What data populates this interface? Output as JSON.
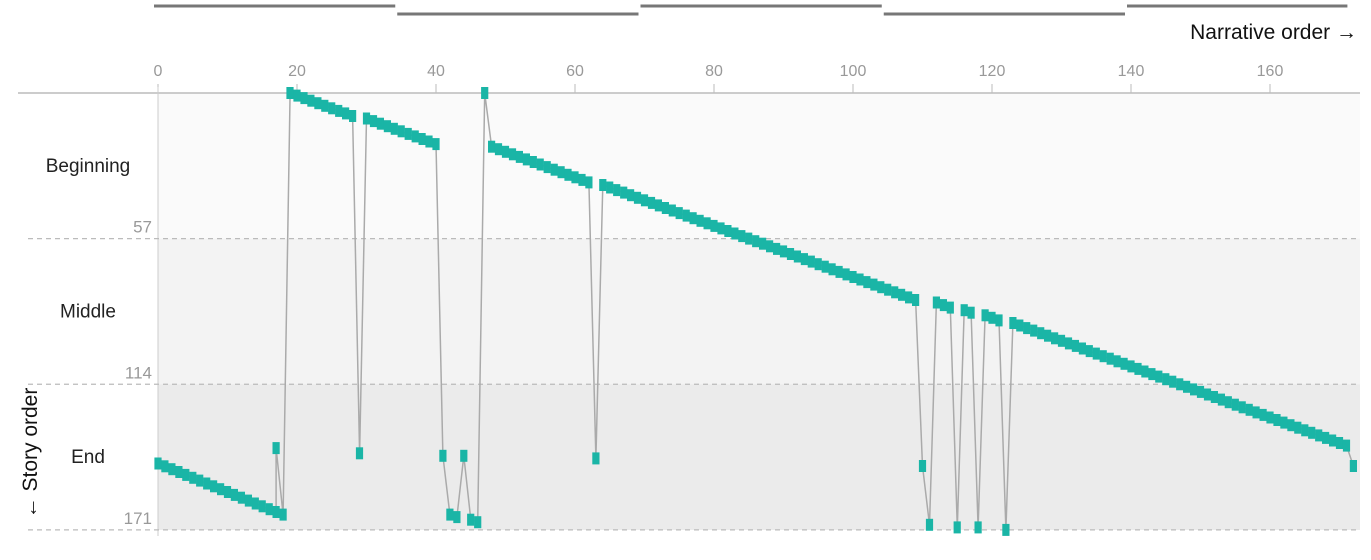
{
  "chart_data": {
    "type": "line",
    "x_axis": {
      "label": "Narrative order →",
      "range": [
        0,
        172
      ],
      "ticks": [
        0,
        20,
        40,
        60,
        80,
        100,
        120,
        140,
        160
      ]
    },
    "y_axis": {
      "label": "← Story order",
      "range": [
        0,
        171
      ],
      "inverted": true,
      "ticks": [
        57,
        114,
        171
      ]
    },
    "bands": [
      {
        "label": "Beginning",
        "start": 0,
        "end": 57
      },
      {
        "label": "Middle",
        "start": 57,
        "end": 114
      },
      {
        "label": "End",
        "start": 114,
        "end": 171
      }
    ],
    "top_segments": [
      [
        0,
        35
      ],
      [
        35,
        70
      ],
      [
        70,
        105
      ],
      [
        105,
        140
      ],
      [
        140,
        172
      ]
    ],
    "segments": [
      {
        "x_start": 0,
        "x_end": 17,
        "y_start": 145,
        "y_end": 164
      },
      {
        "x_start": 17,
        "x_end": 17,
        "y_start": 139,
        "y_end": 139
      },
      {
        "x_start": 18,
        "x_end": 18,
        "y_start": 165,
        "y_end": 165
      },
      {
        "x_start": 19,
        "x_end": 28,
        "y_start": 0,
        "y_end": 9
      },
      {
        "x_start": 29,
        "x_end": 29,
        "y_start": 141,
        "y_end": 141
      },
      {
        "x_start": 30,
        "x_end": 40,
        "y_start": 10,
        "y_end": 20
      },
      {
        "x_start": 41,
        "x_end": 41,
        "y_start": 142,
        "y_end": 142
      },
      {
        "x_start": 42,
        "x_end": 43,
        "y_start": 165,
        "y_end": 166
      },
      {
        "x_start": 44,
        "x_end": 44,
        "y_start": 142,
        "y_end": 142
      },
      {
        "x_start": 45,
        "x_end": 46,
        "y_start": 167,
        "y_end": 168
      },
      {
        "x_start": 47,
        "x_end": 47,
        "y_start": 0,
        "y_end": 0
      },
      {
        "x_start": 48,
        "x_end": 62,
        "y_start": 21,
        "y_end": 35
      },
      {
        "x_start": 63,
        "x_end": 63,
        "y_start": 143,
        "y_end": 143
      },
      {
        "x_start": 64,
        "x_end": 109,
        "y_start": 36,
        "y_end": 81
      },
      {
        "x_start": 110,
        "x_end": 110,
        "y_start": 146,
        "y_end": 146
      },
      {
        "x_start": 111,
        "x_end": 111,
        "y_start": 169,
        "y_end": 169
      },
      {
        "x_start": 112,
        "x_end": 114,
        "y_start": 82,
        "y_end": 84
      },
      {
        "x_start": 115,
        "x_end": 115,
        "y_start": 170,
        "y_end": 170
      },
      {
        "x_start": 116,
        "x_end": 117,
        "y_start": 85,
        "y_end": 86
      },
      {
        "x_start": 118,
        "x_end": 118,
        "y_start": 170,
        "y_end": 170
      },
      {
        "x_start": 119,
        "x_end": 121,
        "y_start": 87,
        "y_end": 89
      },
      {
        "x_start": 122,
        "x_end": 122,
        "y_start": 171,
        "y_end": 171
      },
      {
        "x_start": 123,
        "x_end": 171,
        "y_start": 90,
        "y_end": 138
      },
      {
        "x_start": 172,
        "x_end": 172,
        "y_start": 146,
        "y_end": 146
      }
    ],
    "colors": {
      "marker": "#1ab5a6",
      "line": "#aaaaaa",
      "band_beginning": "#fafafa",
      "band_middle": "#f3f3f3",
      "band_end": "#ebebeb",
      "top_segments": "#777777"
    },
    "grid": false
  }
}
